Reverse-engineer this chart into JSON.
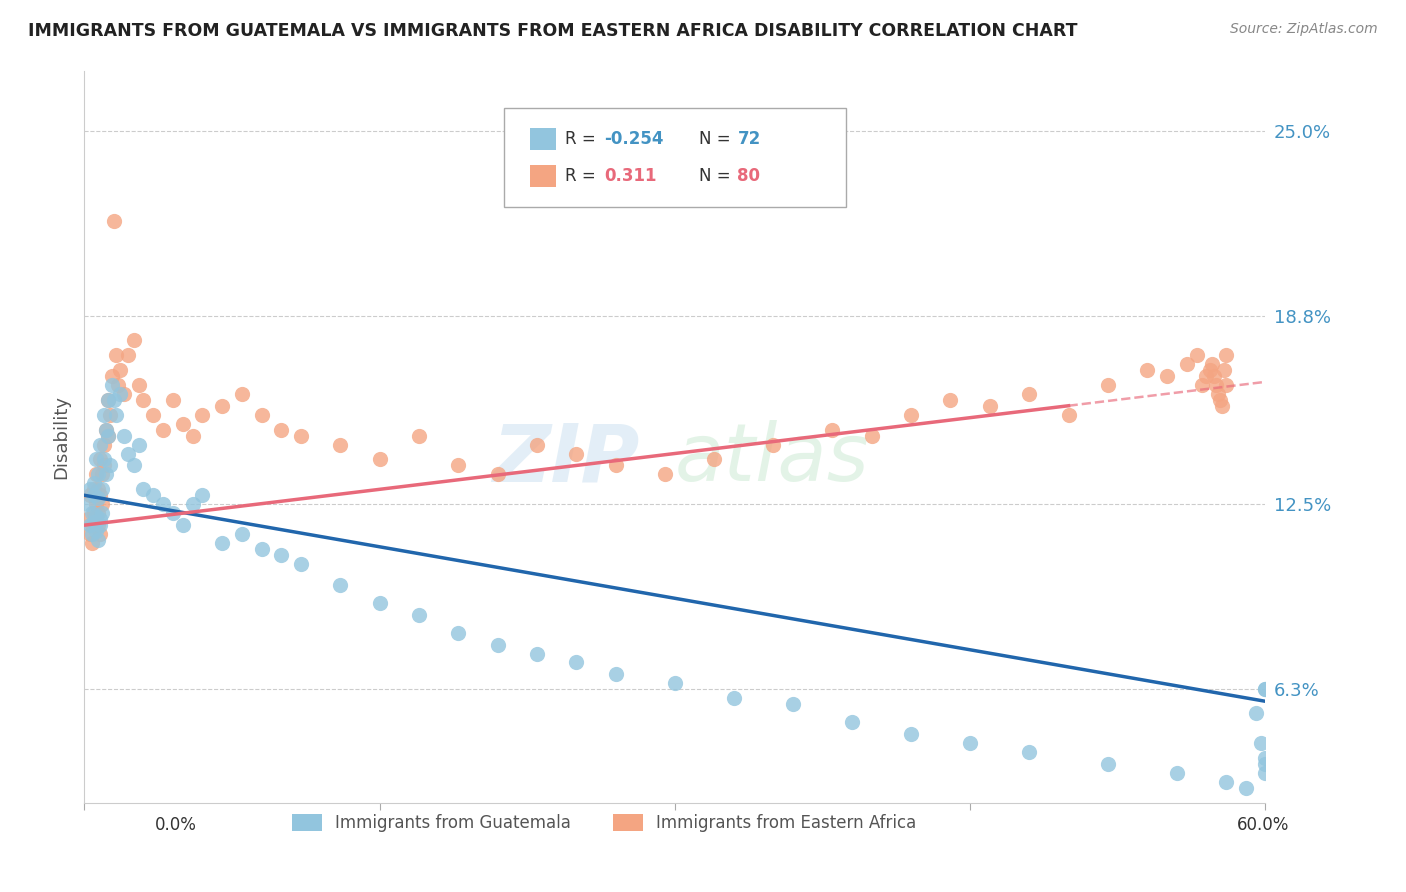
{
  "title": "IMMIGRANTS FROM GUATEMALA VS IMMIGRANTS FROM EASTERN AFRICA DISABILITY CORRELATION CHART",
  "source": "Source: ZipAtlas.com",
  "ylabel": "Disability",
  "y_ticks": [
    0.063,
    0.125,
    0.188,
    0.25
  ],
  "y_tick_labels": [
    "6.3%",
    "12.5%",
    "18.8%",
    "25.0%"
  ],
  "x_min": 0.0,
  "x_max": 0.6,
  "y_min": 0.025,
  "y_max": 0.27,
  "color_blue": "#92c5de",
  "color_pink": "#f4a582",
  "color_blue_line": "#2166ac",
  "color_pink_line": "#e8697a",
  "color_blue_label": "#4393c3",
  "color_pink_label": "#e8697a",
  "guatemala_x": [
    0.002,
    0.003,
    0.003,
    0.004,
    0.004,
    0.005,
    0.005,
    0.005,
    0.006,
    0.006,
    0.006,
    0.007,
    0.007,
    0.007,
    0.008,
    0.008,
    0.008,
    0.009,
    0.009,
    0.01,
    0.01,
    0.011,
    0.011,
    0.012,
    0.012,
    0.013,
    0.014,
    0.015,
    0.016,
    0.018,
    0.02,
    0.022,
    0.025,
    0.028,
    0.03,
    0.035,
    0.04,
    0.045,
    0.05,
    0.055,
    0.06,
    0.07,
    0.08,
    0.09,
    0.1,
    0.11,
    0.13,
    0.15,
    0.17,
    0.19,
    0.21,
    0.23,
    0.25,
    0.27,
    0.3,
    0.33,
    0.36,
    0.39,
    0.42,
    0.45,
    0.48,
    0.52,
    0.555,
    0.58,
    0.59,
    0.595,
    0.598,
    0.6,
    0.6,
    0.6,
    0.6,
    0.6
  ],
  "guatemala_y": [
    0.125,
    0.118,
    0.13,
    0.122,
    0.115,
    0.128,
    0.119,
    0.132,
    0.121,
    0.116,
    0.14,
    0.113,
    0.127,
    0.135,
    0.12,
    0.145,
    0.118,
    0.13,
    0.122,
    0.155,
    0.14,
    0.15,
    0.135,
    0.16,
    0.148,
    0.138,
    0.165,
    0.16,
    0.155,
    0.162,
    0.148,
    0.142,
    0.138,
    0.145,
    0.13,
    0.128,
    0.125,
    0.122,
    0.118,
    0.125,
    0.128,
    0.112,
    0.115,
    0.11,
    0.108,
    0.105,
    0.098,
    0.092,
    0.088,
    0.082,
    0.078,
    0.075,
    0.072,
    0.068,
    0.065,
    0.06,
    0.058,
    0.052,
    0.048,
    0.045,
    0.042,
    0.038,
    0.035,
    0.032,
    0.03,
    0.055,
    0.045,
    0.04,
    0.038,
    0.035,
    0.063,
    0.063
  ],
  "eastern_africa_x": [
    0.002,
    0.003,
    0.003,
    0.004,
    0.004,
    0.005,
    0.005,
    0.006,
    0.006,
    0.006,
    0.007,
    0.007,
    0.007,
    0.008,
    0.008,
    0.008,
    0.009,
    0.009,
    0.01,
    0.01,
    0.011,
    0.012,
    0.012,
    0.013,
    0.014,
    0.015,
    0.016,
    0.017,
    0.018,
    0.02,
    0.022,
    0.025,
    0.028,
    0.03,
    0.035,
    0.04,
    0.045,
    0.05,
    0.055,
    0.06,
    0.07,
    0.08,
    0.09,
    0.1,
    0.11,
    0.13,
    0.15,
    0.17,
    0.19,
    0.21,
    0.23,
    0.25,
    0.27,
    0.295,
    0.32,
    0.35,
    0.38,
    0.4,
    0.42,
    0.44,
    0.46,
    0.48,
    0.5,
    0.52,
    0.54,
    0.55,
    0.56,
    0.565,
    0.568,
    0.57,
    0.572,
    0.573,
    0.574,
    0.575,
    0.576,
    0.577,
    0.578,
    0.579,
    0.58,
    0.58
  ],
  "eastern_africa_y": [
    0.12,
    0.115,
    0.128,
    0.118,
    0.112,
    0.13,
    0.122,
    0.125,
    0.119,
    0.135,
    0.118,
    0.13,
    0.122,
    0.128,
    0.14,
    0.115,
    0.135,
    0.125,
    0.145,
    0.138,
    0.15,
    0.16,
    0.148,
    0.155,
    0.168,
    0.22,
    0.175,
    0.165,
    0.17,
    0.162,
    0.175,
    0.18,
    0.165,
    0.16,
    0.155,
    0.15,
    0.16,
    0.152,
    0.148,
    0.155,
    0.158,
    0.162,
    0.155,
    0.15,
    0.148,
    0.145,
    0.14,
    0.148,
    0.138,
    0.135,
    0.145,
    0.142,
    0.138,
    0.135,
    0.14,
    0.145,
    0.15,
    0.148,
    0.155,
    0.16,
    0.158,
    0.162,
    0.155,
    0.165,
    0.17,
    0.168,
    0.172,
    0.175,
    0.165,
    0.168,
    0.17,
    0.172,
    0.168,
    0.165,
    0.162,
    0.16,
    0.158,
    0.17,
    0.175,
    0.165
  ]
}
